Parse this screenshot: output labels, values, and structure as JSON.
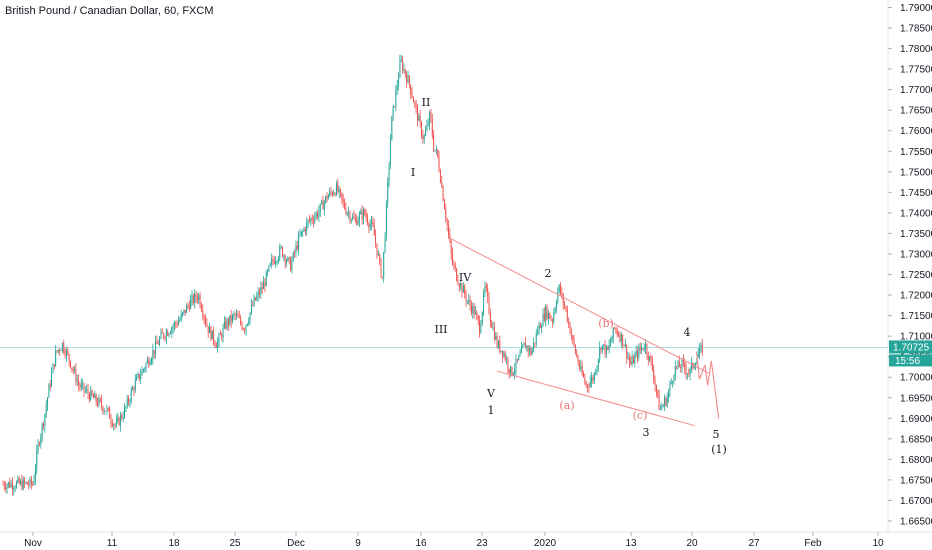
{
  "title": "British Pound / Canadian Dollar, 60, FXCM",
  "colors": {
    "up": "#26a69a",
    "down": "#ef5350",
    "wedge": "#f28b8b",
    "price_line": "#4fbfbf",
    "price_box": "#26a69a",
    "label_dark": "#131722",
    "label_red": "#e57373"
  },
  "chart_data": {
    "type": "line",
    "symbol": "British Pound / Canadian Dollar",
    "interval": "60",
    "source": "FXCM",
    "y_axis": {
      "ticks": [
        "1.79000",
        "1.78500",
        "1.78000",
        "1.77500",
        "1.77000",
        "1.76500",
        "1.76000",
        "1.75500",
        "1.75000",
        "1.74500",
        "1.74000",
        "1.73500",
        "1.73000",
        "1.72500",
        "1.72000",
        "1.71500",
        "1.71000",
        "1.70500",
        "1.70000",
        "1.69500",
        "1.69000",
        "1.68500",
        "1.68000",
        "1.67500",
        "1.67000",
        "1.66500"
      ],
      "ylim": [
        1.662,
        1.793
      ]
    },
    "x_axis": {
      "ticks": [
        "Nov",
        "11",
        "18",
        "25",
        "Dec",
        "9",
        "16",
        "23",
        "2020",
        "13",
        "20",
        "27",
        "Feb",
        "10"
      ]
    },
    "current_price": "1.70725",
    "countdown": "15:56",
    "series": [
      {
        "x": [
          0,
          0.6,
          1.2,
          1.8,
          2.5,
          3.2,
          4,
          5,
          6,
          7,
          8,
          9,
          10,
          11,
          12,
          13,
          14,
          15,
          16,
          17,
          18,
          19,
          20,
          21,
          22,
          23,
          24,
          25,
          26,
          27,
          28,
          29,
          30,
          31,
          32,
          33,
          34,
          35,
          36,
          37,
          38,
          39,
          40,
          41,
          42,
          42.5,
          42.9,
          43.2,
          43.6,
          44,
          44.5,
          45,
          45.6,
          46.2,
          46.8,
          47.4,
          48,
          48.6,
          49.2,
          49.8,
          50.5,
          51.2,
          52,
          52.8,
          53.5,
          54.2,
          55,
          55.8,
          56.5,
          57.2,
          58,
          58.8,
          59.5,
          60.2,
          61,
          61.8,
          62.5,
          63.3,
          64.2,
          65,
          65.8,
          66.6,
          67.4,
          68.2,
          69,
          69.8,
          70.6,
          71.4,
          72.2,
          72.9
        ],
        "values": [
          1.674,
          1.684,
          1.69,
          1.698,
          1.706,
          1.708,
          1.704,
          1.698,
          1.696,
          1.694,
          1.692,
          1.688,
          1.692,
          1.698,
          1.702,
          1.706,
          1.71,
          1.712,
          1.714,
          1.718,
          1.72,
          1.712,
          1.708,
          1.713,
          1.715,
          1.712,
          1.718,
          1.722,
          1.728,
          1.731,
          1.727,
          1.734,
          1.738,
          1.74,
          1.744,
          1.746,
          1.741,
          1.738,
          1.74,
          1.736,
          1.724,
          1.762,
          1.777,
          1.771,
          1.762,
          1.758,
          1.761,
          1.764,
          1.756,
          1.754,
          1.746,
          1.738,
          1.728,
          1.724,
          1.721,
          1.718,
          1.716,
          1.712,
          1.722,
          1.714,
          1.708,
          1.706,
          1.701,
          1.704,
          1.708,
          1.706,
          1.712,
          1.716,
          1.714,
          1.722,
          1.716,
          1.708,
          1.702,
          1.698,
          1.7,
          1.708,
          1.706,
          1.712,
          1.709,
          1.703,
          1.706,
          1.708,
          1.702,
          1.692,
          1.695,
          1.702,
          1.703,
          1.701,
          1.705,
          1.7072
        ]
      }
    ],
    "annotations": {
      "wave_labels": [
        {
          "text": "I",
          "color": "dark"
        },
        {
          "text": "II",
          "color": "dark"
        },
        {
          "text": "III",
          "color": "dark"
        },
        {
          "text": "IV",
          "color": "dark"
        },
        {
          "text": "V",
          "color": "dark"
        },
        {
          "text": "1",
          "color": "dark"
        },
        {
          "text": "2",
          "color": "dark"
        },
        {
          "text": "3",
          "color": "dark"
        },
        {
          "text": "4",
          "color": "dark"
        },
        {
          "text": "5",
          "color": "dark"
        },
        {
          "text": "(1)",
          "color": "dark"
        },
        {
          "text": "(a)",
          "color": "red"
        },
        {
          "text": "(b)",
          "color": "red"
        },
        {
          "text": "(c)",
          "color": "red"
        }
      ]
    }
  }
}
